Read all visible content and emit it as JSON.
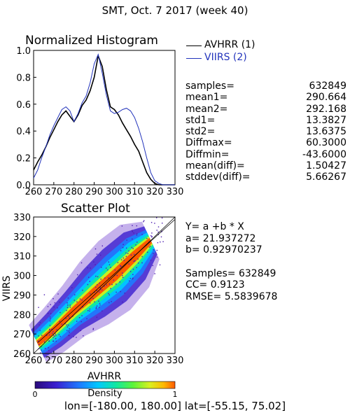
{
  "title": "SMT,  Oct. 7 2017 (week 40)",
  "colors": {
    "avhrr": "#000000",
    "viirs": "#2233bb",
    "fit_line": "#000000"
  },
  "histogram": {
    "title": "Normalized Histogram",
    "legend": [
      {
        "label": "AVHRR (1)",
        "color": "#000000"
      },
      {
        "label": "VIIRS (2)",
        "color": "#2233bb"
      }
    ]
  },
  "stats": [
    {
      "label": "samples=",
      "value": "632849"
    },
    {
      "label": "mean1=",
      "value": "290.664"
    },
    {
      "label": "mean2=",
      "value": "292.168"
    },
    {
      "label": "std1=",
      "value": "13.3827"
    },
    {
      "label": "std2=",
      "value": "13.6375"
    },
    {
      "label": "Diffmax=",
      "value": "60.3000"
    },
    {
      "label": "Diffmin=",
      "value": "-43.6000"
    },
    {
      "label": "mean(diff)=",
      "value": "1.50427"
    },
    {
      "label": "stddev(diff)=",
      "value": "5.66267"
    }
  ],
  "scatter": {
    "title": "Scatter Plot",
    "fit": {
      "equation": "Y= a +b * X",
      "a_text": "a= 21.937272",
      "b_text": "b= 0.92970237",
      "samples_text": "Samples= 632849",
      "cc_text": "CC=  0.9123",
      "rmse_text": "RMSE= 5.5839678"
    }
  },
  "colorbar": {
    "label": "Density",
    "min_label": "0",
    "max_label": "1"
  },
  "region": "lon=[-180.00, 180.00] lat=[-55.15, 75.02]",
  "chart_data": [
    {
      "type": "line",
      "title": "Normalized Histogram",
      "xlabel": "",
      "ylabel": "",
      "xlim": [
        260,
        330
      ],
      "ylim": [
        0.0,
        1.0
      ],
      "x_ticks": [
        "260",
        "270",
        "280",
        "290",
        "300",
        "310",
        "320",
        "330"
      ],
      "y_ticks": [
        "0.0",
        "0.2",
        "0.4",
        "0.6",
        "0.8",
        "1.0"
      ],
      "x": [
        260,
        262,
        264,
        266,
        268,
        270,
        272,
        274,
        276,
        278,
        280,
        282,
        284,
        286,
        288,
        290,
        292,
        294,
        296,
        298,
        300,
        302,
        304,
        306,
        308,
        310,
        312,
        314,
        316,
        318,
        320,
        322,
        324,
        326,
        328,
        330
      ],
      "series": [
        {
          "name": "AVHRR (1)",
          "values": [
            0.11,
            0.17,
            0.22,
            0.28,
            0.35,
            0.41,
            0.47,
            0.52,
            0.55,
            0.51,
            0.47,
            0.52,
            0.59,
            0.63,
            0.7,
            0.8,
            0.96,
            0.88,
            0.71,
            0.58,
            0.56,
            0.52,
            0.46,
            0.41,
            0.36,
            0.3,
            0.25,
            0.17,
            0.09,
            0.04,
            0.01,
            0.0,
            0.0,
            0.0,
            0.0,
            0.0
          ]
        },
        {
          "name": "VIIRS (2)",
          "values": [
            0.05,
            0.11,
            0.2,
            0.28,
            0.37,
            0.44,
            0.5,
            0.56,
            0.58,
            0.55,
            0.47,
            0.53,
            0.61,
            0.66,
            0.76,
            0.9,
            0.97,
            0.83,
            0.67,
            0.55,
            0.53,
            0.54,
            0.56,
            0.57,
            0.55,
            0.5,
            0.42,
            0.32,
            0.2,
            0.09,
            0.03,
            0.01,
            0.0,
            0.0,
            0.0,
            0.0
          ]
        }
      ]
    },
    {
      "type": "scatter",
      "title": "Scatter Plot",
      "xlabel": "AVHRR",
      "ylabel": "VIIRS",
      "xlim": [
        260,
        330
      ],
      "ylim": [
        260,
        330
      ],
      "x_ticks": [
        "260",
        "270",
        "280",
        "290",
        "300",
        "310",
        "320",
        "330"
      ],
      "y_ticks": [
        "260",
        "270",
        "280",
        "290",
        "300",
        "310",
        "320",
        "330"
      ],
      "fit": {
        "a": 21.937272,
        "b": 0.92970237
      },
      "density_colorbar": [
        0,
        1
      ],
      "density_ridge": {
        "x": [
          262,
          270,
          280,
          290,
          300,
          310,
          318
        ],
        "y": [
          265,
          272,
          282,
          291,
          300,
          310,
          318
        ],
        "half_width": [
          3,
          3.5,
          4,
          5,
          5.5,
          5,
          3
        ]
      }
    }
  ]
}
